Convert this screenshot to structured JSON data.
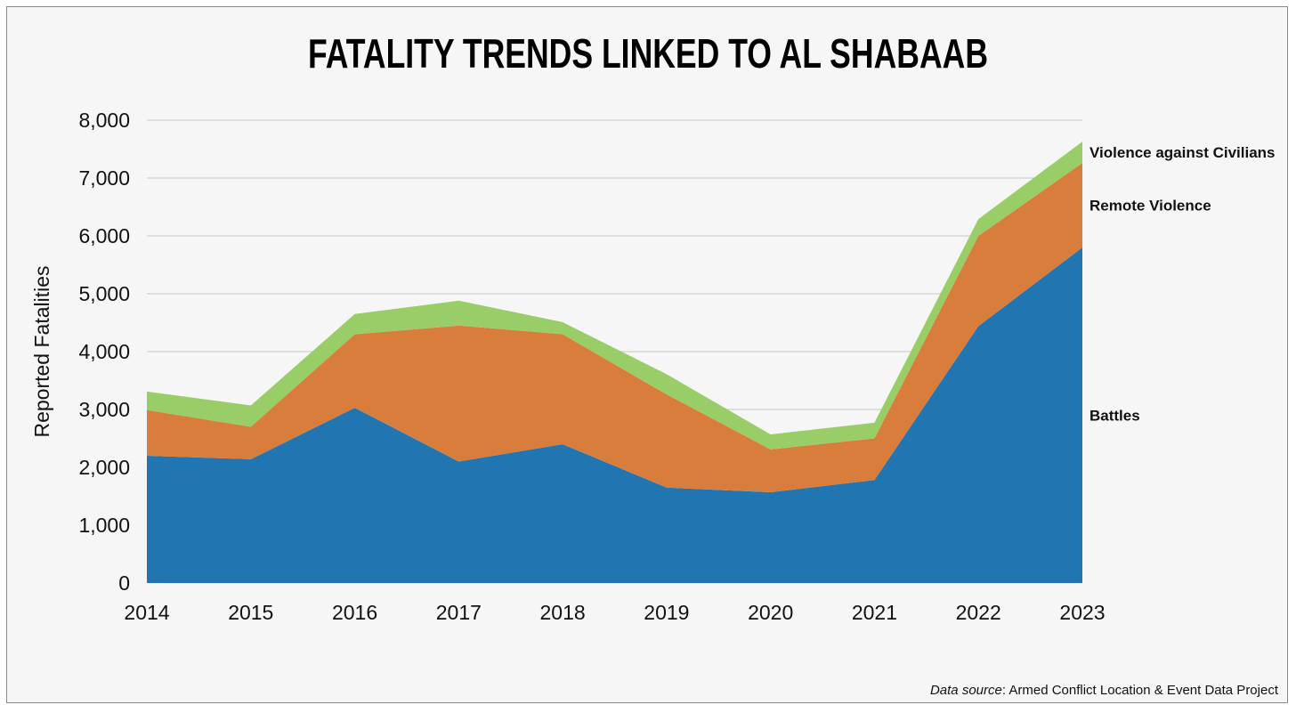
{
  "chart_data": {
    "type": "area",
    "stacked": true,
    "title": "FATALITY TRENDS LINKED TO AL SHABAAB",
    "ylabel": "Reported Fatalities",
    "xlabel": "",
    "ylim": [
      0,
      8000
    ],
    "yticks": [
      0,
      1000,
      2000,
      3000,
      4000,
      5000,
      6000,
      7000,
      8000
    ],
    "ytick_labels": [
      "0",
      "1,000",
      "2,000",
      "3,000",
      "4,000",
      "5,000",
      "6,000",
      "7,000",
      "8,000"
    ],
    "categories": [
      "2014",
      "2015",
      "2016",
      "2017",
      "2018",
      "2019",
      "2020",
      "2021",
      "2022",
      "2023"
    ],
    "grid": true,
    "legend_placement": "right, inline labels",
    "series": [
      {
        "name": "Battles",
        "color": "#2176b2",
        "values": [
          2200,
          2140,
          3030,
          2100,
          2400,
          1650,
          1570,
          1780,
          4440,
          5800
        ]
      },
      {
        "name": "Remote Violence",
        "color": "#d97d3d",
        "values": [
          790,
          560,
          1270,
          2350,
          1900,
          1610,
          740,
          720,
          1560,
          1460
        ]
      },
      {
        "name": "Violence against Civilians",
        "color": "#99cd68",
        "values": [
          320,
          370,
          350,
          430,
          210,
          350,
          260,
          270,
          290,
          370
        ]
      }
    ],
    "source_label": "Data source",
    "source_text": ": Armed Conflict Location & Event Data Project"
  }
}
